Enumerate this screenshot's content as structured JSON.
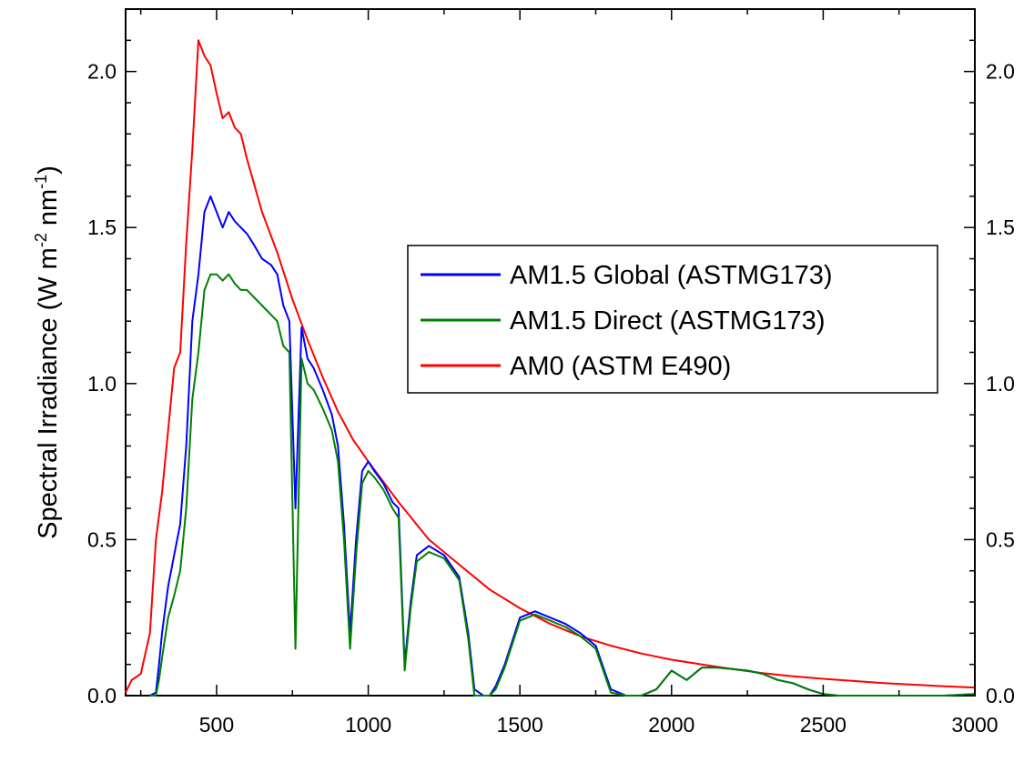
{
  "chart_data": {
    "type": "line",
    "title": "",
    "xlabel": "",
    "ylabel_parts": {
      "main": "Spectral Irradiance (W m",
      "sup1": "-2",
      "mid": " nm",
      "sup2": "-1",
      "end": ")"
    },
    "xlim": [
      200,
      3000
    ],
    "ylim": [
      0,
      2.2
    ],
    "x_ticks": [
      500,
      1000,
      1500,
      2000,
      2500,
      3000
    ],
    "x_tick_labels": [
      "500",
      "1000",
      "1500",
      "2000",
      "2500",
      "3000"
    ],
    "y_ticks": [
      0,
      0.5,
      1.0,
      1.5,
      2.0
    ],
    "y_tick_labels": [
      "0.0",
      "0.5",
      "1.0",
      "1.5",
      "2.0"
    ],
    "right_axis_tick_labels": [
      "0.0",
      "0.5",
      "1.0",
      "1.5",
      "2.0"
    ],
    "grid": false,
    "legend_position": "center-right",
    "series": [
      {
        "name": "AM1.5 Global (ASTMG173)",
        "color": "#0000ff",
        "x": [
          280,
          300,
          310,
          320,
          340,
          360,
          380,
          400,
          420,
          440,
          460,
          480,
          500,
          520,
          540,
          560,
          580,
          600,
          620,
          650,
          680,
          700,
          720,
          740,
          760,
          780,
          800,
          820,
          850,
          880,
          900,
          920,
          940,
          960,
          980,
          1000,
          1020,
          1050,
          1080,
          1100,
          1120,
          1140,
          1160,
          1200,
          1250,
          1300,
          1330,
          1350,
          1380,
          1400,
          1420,
          1450,
          1500,
          1550,
          1600,
          1650,
          1700,
          1750,
          1800,
          1850,
          1900,
          1950,
          2000,
          2050,
          2100,
          2150,
          2200,
          2250,
          2300,
          2350,
          2400,
          2450,
          2500,
          2550,
          2600,
          2700,
          2800,
          2900,
          3000
        ],
        "y": [
          0.0,
          0.01,
          0.1,
          0.2,
          0.35,
          0.45,
          0.55,
          0.8,
          1.2,
          1.35,
          1.55,
          1.6,
          1.55,
          1.5,
          1.55,
          1.52,
          1.5,
          1.48,
          1.45,
          1.4,
          1.38,
          1.35,
          1.25,
          1.2,
          0.6,
          1.18,
          1.08,
          1.05,
          0.98,
          0.9,
          0.8,
          0.55,
          0.2,
          0.5,
          0.72,
          0.75,
          0.72,
          0.68,
          0.62,
          0.6,
          0.1,
          0.3,
          0.45,
          0.48,
          0.45,
          0.38,
          0.2,
          0.02,
          0.0,
          0.0,
          0.03,
          0.1,
          0.25,
          0.27,
          0.25,
          0.23,
          0.2,
          0.16,
          0.02,
          0.0,
          0.0,
          0.02,
          0.08,
          0.05,
          0.09,
          0.09,
          0.085,
          0.08,
          0.07,
          0.05,
          0.04,
          0.02,
          0.005,
          0.0,
          0.0,
          0.0,
          0.0,
          0.0,
          0.005
        ]
      },
      {
        "name": "AM1.5 Direct (ASTMG173)",
        "color": "#008000",
        "x": [
          280,
          300,
          310,
          320,
          340,
          360,
          380,
          400,
          420,
          440,
          460,
          480,
          500,
          520,
          540,
          560,
          580,
          600,
          620,
          650,
          680,
          700,
          720,
          740,
          760,
          780,
          800,
          820,
          850,
          880,
          900,
          920,
          940,
          960,
          980,
          1000,
          1020,
          1050,
          1080,
          1100,
          1120,
          1140,
          1160,
          1200,
          1250,
          1300,
          1330,
          1350,
          1380,
          1400,
          1420,
          1450,
          1500,
          1550,
          1600,
          1650,
          1700,
          1750,
          1800,
          1850,
          1900,
          1950,
          2000,
          2050,
          2100,
          2150,
          2200,
          2250,
          2300,
          2350,
          2400,
          2450,
          2500,
          2550,
          2600,
          2700,
          2800,
          2900,
          3000
        ],
        "y": [
          0.0,
          0.0,
          0.05,
          0.12,
          0.25,
          0.32,
          0.4,
          0.6,
          0.95,
          1.1,
          1.3,
          1.35,
          1.35,
          1.33,
          1.35,
          1.32,
          1.3,
          1.3,
          1.28,
          1.25,
          1.22,
          1.2,
          1.12,
          1.1,
          0.15,
          1.08,
          1.0,
          0.98,
          0.92,
          0.85,
          0.75,
          0.5,
          0.15,
          0.45,
          0.68,
          0.72,
          0.7,
          0.66,
          0.6,
          0.57,
          0.08,
          0.28,
          0.43,
          0.46,
          0.44,
          0.37,
          0.18,
          0.0,
          0.0,
          0.0,
          0.02,
          0.09,
          0.24,
          0.26,
          0.24,
          0.22,
          0.19,
          0.15,
          0.01,
          0.0,
          0.0,
          0.02,
          0.08,
          0.05,
          0.09,
          0.09,
          0.085,
          0.08,
          0.07,
          0.05,
          0.04,
          0.02,
          0.005,
          0.0,
          0.0,
          0.0,
          0.0,
          0.0,
          0.005
        ]
      },
      {
        "name": "AM0 (ASTM E490)",
        "color": "#ff0000",
        "x": [
          200,
          220,
          250,
          280,
          300,
          320,
          340,
          360,
          380,
          400,
          420,
          440,
          460,
          480,
          500,
          520,
          540,
          560,
          580,
          600,
          650,
          700,
          750,
          800,
          850,
          900,
          950,
          1000,
          1100,
          1200,
          1300,
          1400,
          1500,
          1600,
          1700,
          1800,
          1900,
          2000,
          2100,
          2200,
          2300,
          2400,
          2500,
          2600,
          2700,
          2800,
          2900,
          3000
        ],
        "y": [
          0.01,
          0.05,
          0.07,
          0.2,
          0.5,
          0.65,
          0.85,
          1.05,
          1.1,
          1.45,
          1.75,
          2.1,
          2.05,
          2.02,
          1.93,
          1.85,
          1.87,
          1.82,
          1.8,
          1.72,
          1.55,
          1.42,
          1.27,
          1.14,
          1.02,
          0.91,
          0.82,
          0.75,
          0.62,
          0.5,
          0.42,
          0.34,
          0.28,
          0.23,
          0.19,
          0.16,
          0.135,
          0.115,
          0.1,
          0.085,
          0.072,
          0.062,
          0.054,
          0.047,
          0.04,
          0.035,
          0.03,
          0.026
        ]
      }
    ]
  }
}
